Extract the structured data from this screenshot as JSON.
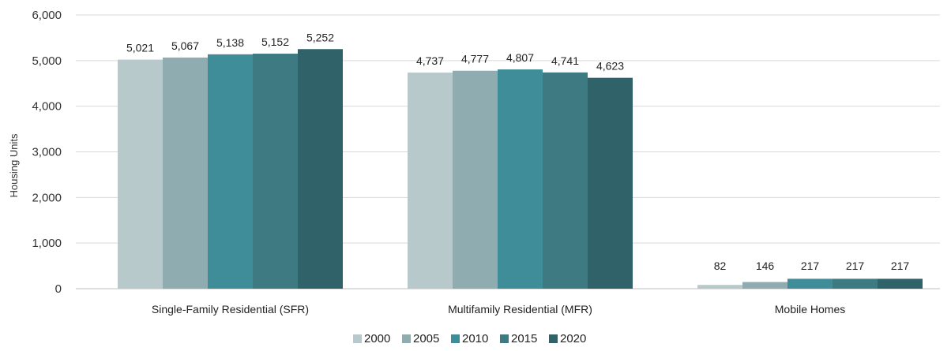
{
  "chart_data": {
    "type": "bar",
    "categories": [
      "Single-Family Residential (SFR)",
      "Multifamily Residential (MFR)",
      "Mobile Homes"
    ],
    "series": [
      {
        "name": "2000",
        "color": "#b8c9cc",
        "values": [
          5021,
          4737,
          82
        ],
        "labels": [
          "5,021",
          "4,737",
          "82"
        ]
      },
      {
        "name": "2005",
        "color": "#8fadb1",
        "values": [
          5067,
          4777,
          146
        ],
        "labels": [
          "5,067",
          "4,777",
          "146"
        ]
      },
      {
        "name": "2010",
        "color": "#3f8d98",
        "values": [
          5138,
          4807,
          217
        ],
        "labels": [
          "5,138",
          "4,807",
          "217"
        ]
      },
      {
        "name": "2015",
        "color": "#3e7a82",
        "values": [
          5152,
          4741,
          217
        ],
        "labels": [
          "5,152",
          "4,741",
          "217"
        ]
      },
      {
        "name": "2020",
        "color": "#2f6369",
        "values": [
          5252,
          4623,
          217
        ],
        "labels": [
          "5,252",
          "4,623",
          "217"
        ]
      }
    ],
    "ylabel": "Housing Units",
    "ylim": [
      0,
      6000
    ],
    "yticks": [
      0,
      1000,
      2000,
      3000,
      4000,
      5000,
      6000
    ],
    "ytick_labels": [
      "0",
      "1,000",
      "2,000",
      "3,000",
      "4,000",
      "5,000",
      "6,000"
    ],
    "grid": true,
    "legend_position": "bottom"
  }
}
